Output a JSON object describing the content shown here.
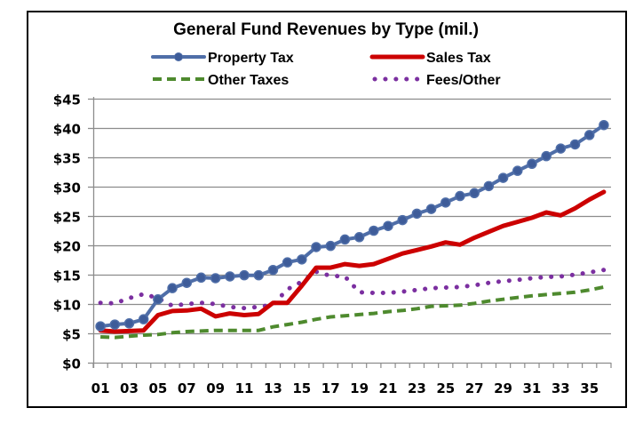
{
  "chart_data": {
    "type": "line",
    "title": "General Fund Revenues by Type (mil.)",
    "xlabel": "",
    "ylabel": "",
    "ylim": [
      0,
      45
    ],
    "y_ticks": [
      0,
      5,
      10,
      15,
      20,
      25,
      30,
      35,
      40,
      45
    ],
    "y_tick_labels": [
      "$0",
      "$5",
      "$10",
      "$15",
      "$20",
      "$25",
      "$30",
      "$35",
      "$40",
      "$45"
    ],
    "grid": true,
    "legend_position": "top",
    "categories": [
      "01",
      "02",
      "03",
      "04",
      "05",
      "06",
      "07",
      "08",
      "09",
      "10",
      "11",
      "12",
      "13",
      "14",
      "15",
      "16",
      "17",
      "18",
      "19",
      "20",
      "21",
      "22",
      "23",
      "24",
      "25",
      "26",
      "27",
      "28",
      "29",
      "30",
      "31",
      "32",
      "33",
      "34",
      "35",
      "36"
    ],
    "x_tick_labels": [
      "01",
      "03",
      "05",
      "07",
      "09",
      "11",
      "13",
      "15",
      "17",
      "19",
      "21",
      "23",
      "25",
      "27",
      "29",
      "31",
      "33",
      "35"
    ],
    "series": [
      {
        "name": "Property Tax",
        "color": "#4F6EA8",
        "style": "solid-markers",
        "values": [
          6.2,
          6.5,
          6.7,
          7.4,
          10.8,
          12.7,
          13.6,
          14.5,
          14.4,
          14.7,
          14.9,
          14.9,
          15.8,
          17.1,
          17.6,
          19.7,
          19.9,
          21.0,
          21.4,
          22.5,
          23.3,
          24.3,
          25.4,
          26.2,
          27.3,
          28.4,
          28.9,
          30.1,
          31.5,
          32.7,
          33.9,
          35.2,
          36.5,
          37.2,
          38.8,
          40.5
        ]
      },
      {
        "name": "Sales Tax",
        "color": "#CC0000",
        "style": "solid-thick",
        "values": [
          5.5,
          5.3,
          5.4,
          5.5,
          8.1,
          8.8,
          8.9,
          9.2,
          7.9,
          8.4,
          8.1,
          8.3,
          10.2,
          10.2,
          13.1,
          16.2,
          16.2,
          16.8,
          16.5,
          16.8,
          17.7,
          18.6,
          19.2,
          19.8,
          20.5,
          20.1,
          21.3,
          22.3,
          23.3,
          24.0,
          24.7,
          25.6,
          25.1,
          26.3,
          27.8,
          29.1
        ]
      },
      {
        "name": "Other Taxes",
        "color": "#4E8A2E",
        "style": "dashed",
        "values": [
          4.4,
          4.3,
          4.5,
          4.7,
          4.8,
          5.1,
          5.3,
          5.4,
          5.5,
          5.5,
          5.5,
          5.5,
          6.1,
          6.5,
          6.9,
          7.4,
          7.8,
          8.0,
          8.2,
          8.4,
          8.7,
          8.9,
          9.2,
          9.6,
          9.7,
          9.8,
          10.1,
          10.5,
          10.8,
          11.1,
          11.4,
          11.6,
          11.8,
          12.0,
          12.4,
          12.9
        ]
      },
      {
        "name": "Fees/Other",
        "color": "#7B2FA0",
        "style": "dotted",
        "values": [
          10.2,
          10.1,
          11.0,
          11.7,
          11.0,
          9.7,
          10.0,
          10.2,
          10.0,
          9.5,
          9.3,
          9.5,
          9.9,
          12.5,
          13.8,
          15.5,
          14.8,
          14.7,
          12.0,
          11.9,
          11.9,
          12.1,
          12.4,
          12.7,
          12.8,
          12.9,
          13.2,
          13.6,
          13.9,
          14.1,
          14.4,
          14.6,
          14.7,
          15.0,
          15.4,
          15.8
        ]
      }
    ]
  }
}
